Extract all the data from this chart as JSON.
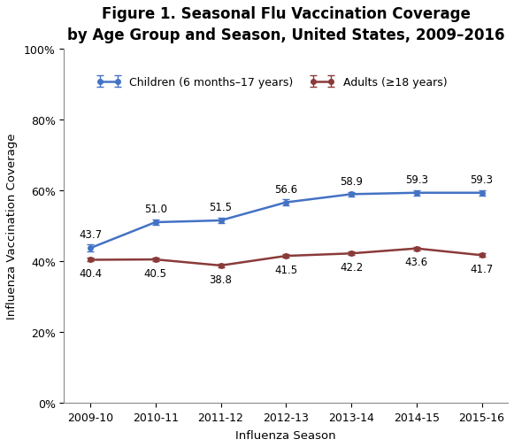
{
  "title": "Figure 1. Seasonal Flu Vaccination Coverage\nby Age Group and Season, United States, 2009–2016",
  "xlabel": "Influenza Season",
  "ylabel": "Influenza Vaccination Coverage",
  "seasons": [
    "2009-10",
    "2010-11",
    "2011-12",
    "2012-13",
    "2013-14",
    "2014-15",
    "2015-16"
  ],
  "children_values": [
    43.7,
    51.0,
    51.5,
    56.6,
    58.9,
    59.3,
    59.3
  ],
  "adults_values": [
    40.4,
    40.5,
    38.8,
    41.5,
    42.2,
    43.6,
    41.7
  ],
  "children_errors": [
    1.0,
    0.8,
    0.8,
    0.8,
    0.7,
    0.7,
    0.7
  ],
  "adults_errors": [
    0.5,
    0.5,
    0.5,
    0.5,
    0.5,
    0.5,
    0.5
  ],
  "children_color": "#4472C4",
  "adults_color": "#8B3A3A",
  "children_label": "Children (6 months–17 years)",
  "adults_label": "Adults (≥18 years)",
  "ylim": [
    0,
    100
  ],
  "yticks": [
    0,
    20,
    40,
    60,
    80,
    100
  ],
  "ytick_labels": [
    "0%",
    "20%",
    "40%",
    "60%",
    "80%",
    "100%"
  ],
  "background_color": "#ffffff",
  "title_fontsize": 12,
  "label_fontsize": 9.5,
  "tick_fontsize": 9,
  "annotation_fontsize": 8.5,
  "legend_fontsize": 9
}
